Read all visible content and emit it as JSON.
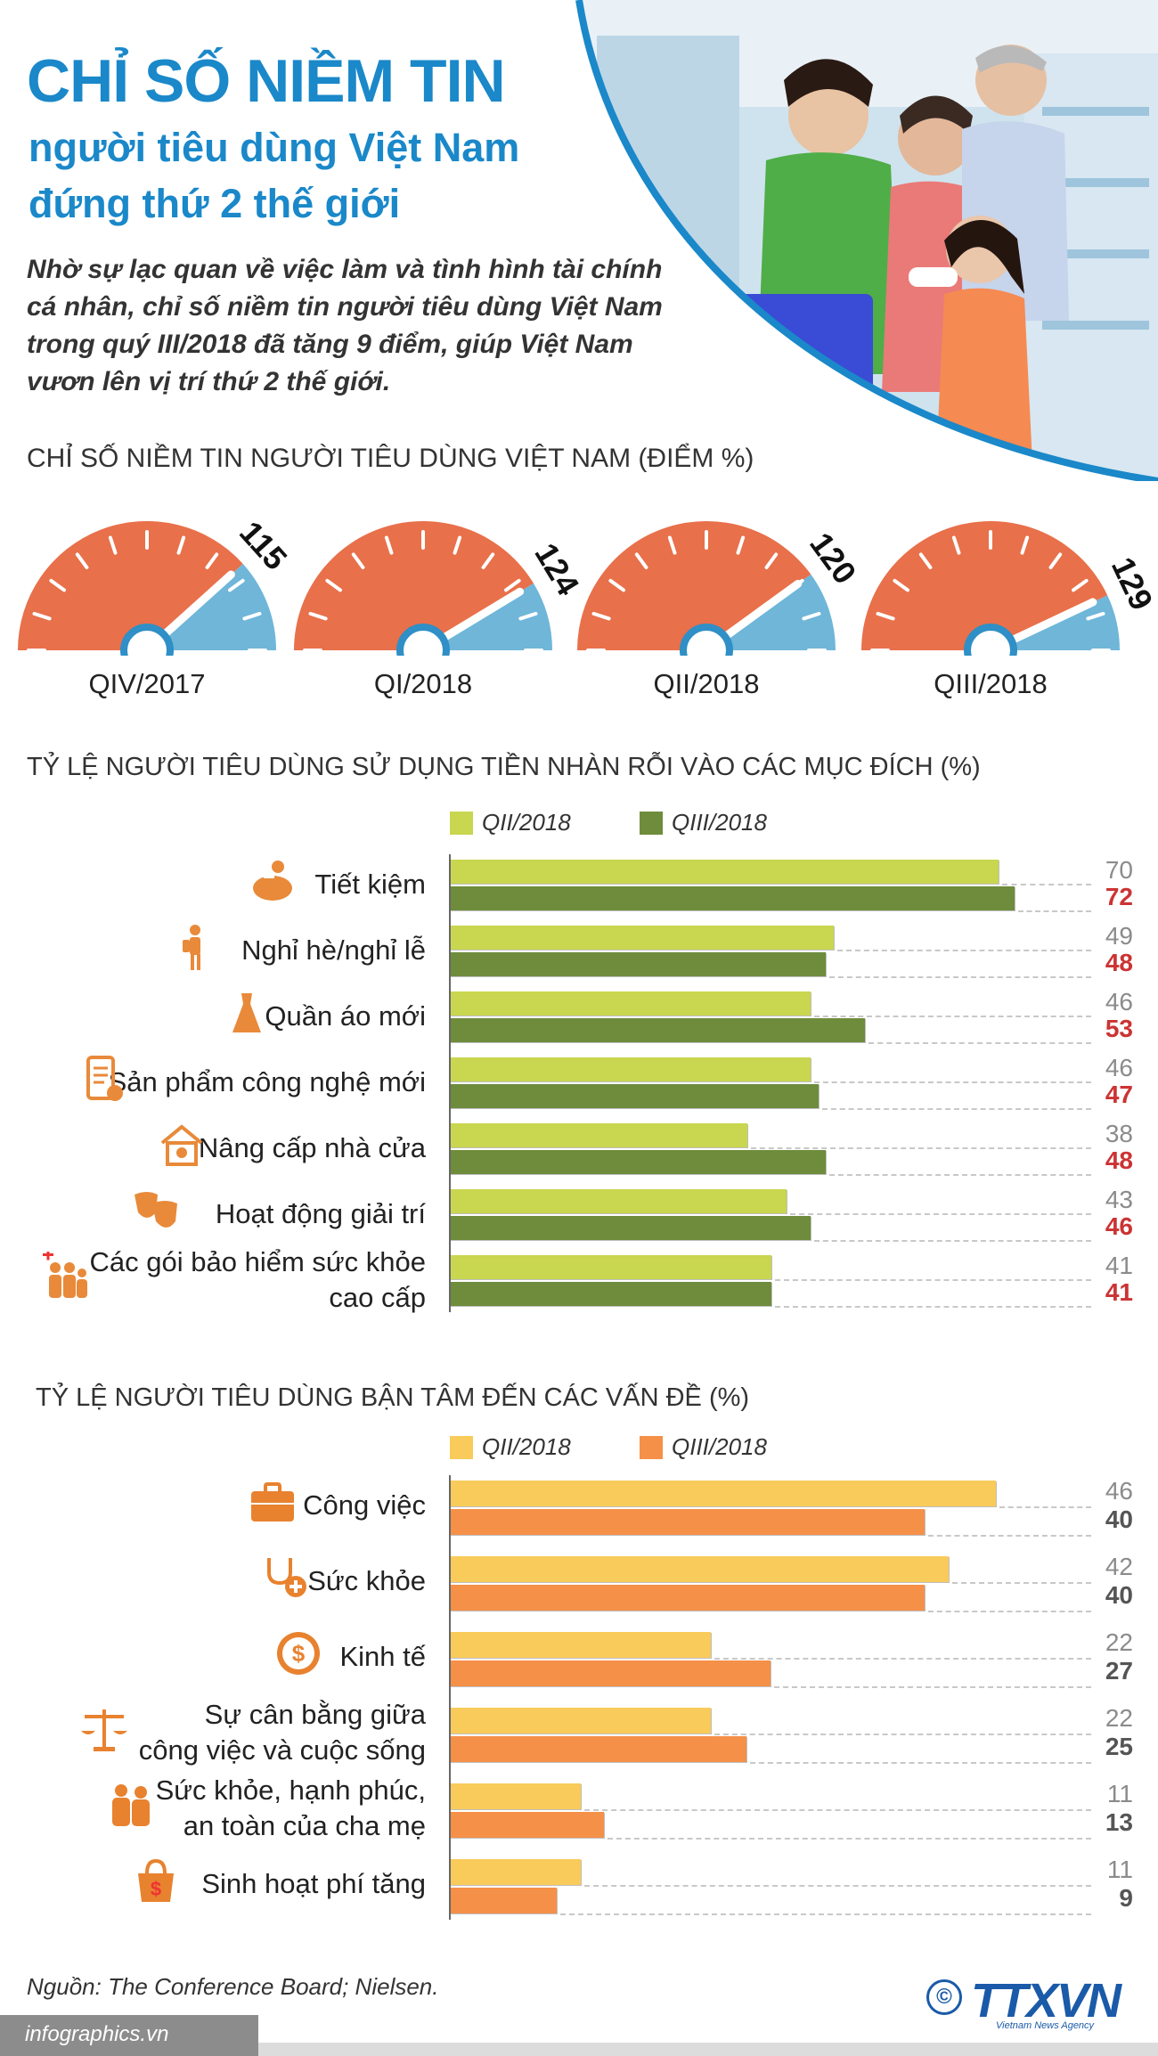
{
  "header": {
    "title_line1": "CHỈ SỐ NIỀM TIN",
    "title_line2": "người tiêu dùng Việt Nam",
    "title_line3": "đứng thứ 2 thế giới",
    "intro": "Nhờ sự lạc quan về việc làm và tình hình tài chính cá nhân, chỉ số niềm tin người tiêu dùng Việt Nam trong quý III/2018 đã tăng 9 điểm, giúp Việt Nam vươn lên vị trí thứ 2 thế giới."
  },
  "colors": {
    "brand_blue": "#1a88c9",
    "gauge_orange": "#e8704a",
    "gauge_blue": "#6fb6d9",
    "gauge_needle_ring": "#2f8fc6",
    "bar1_prev": "#c9d64f",
    "bar1_cur": "#6e8c3c",
    "bar2_prev": "#f9cb5a",
    "bar2_cur": "#f59048",
    "value_highlight": "#cc3333"
  },
  "chart_data": [
    {
      "type": "gauge",
      "title": "CHỈ SỐ NIỀM TIN NGƯỜI TIÊU DÙNG VIỆT NAM (ĐIỂM %)",
      "categories": [
        "QIV/2017",
        "QI/2018",
        "QII/2018",
        "QIII/2018"
      ],
      "values": [
        115,
        124,
        120,
        129
      ]
    },
    {
      "type": "bar",
      "orientation": "horizontal",
      "title": "TỶ LỆ NGƯỜI TIÊU DÙNG SỬ DỤNG TIỀN NHÀN RỖI VÀO CÁC MỤC ĐÍCH (%)",
      "legend_placement": "top",
      "categories": [
        {
          "label": [
            "Tiết kiệm"
          ],
          "icon": "piggy-bank-icon"
        },
        {
          "label": [
            "Nghỉ hè/nghỉ lễ"
          ],
          "icon": "hiker-icon"
        },
        {
          "label": [
            "Quần áo mới"
          ],
          "icon": "dress-icon"
        },
        {
          "label": [
            "Sản phẩm công nghệ mới"
          ],
          "icon": "phone-icon"
        },
        {
          "label": [
            "Nâng cấp nhà cửa"
          ],
          "icon": "house-gear-icon"
        },
        {
          "label": [
            "Hoạt động giải trí"
          ],
          "icon": "theater-masks-icon"
        },
        {
          "label": [
            "Các gói bảo hiểm sức khỏe",
            "cao cấp"
          ],
          "icon": "family-health-icon"
        }
      ],
      "series": [
        {
          "name": "QII/2018",
          "values": [
            70,
            49,
            46,
            46,
            38,
            43,
            41
          ]
        },
        {
          "name": "QIII/2018",
          "values": [
            72,
            48,
            53,
            47,
            48,
            46,
            41
          ]
        }
      ],
      "xlim": [
        0,
        75
      ]
    },
    {
      "type": "bar",
      "orientation": "horizontal",
      "title": "TỶ LỆ NGƯỜI TIÊU DÙNG BẬN TÂM ĐẾN CÁC VẤN ĐỀ (%)",
      "legend_placement": "top",
      "categories": [
        {
          "label": [
            "Công việc"
          ],
          "icon": "briefcase-icon"
        },
        {
          "label": [
            "Sức khỏe"
          ],
          "icon": "stethoscope-icon"
        },
        {
          "label": [
            "Kinh tế"
          ],
          "icon": "dollar-coin-icon"
        },
        {
          "label": [
            "Sự cân bằng giữa",
            "công việc và cuộc sống"
          ],
          "icon": "balance-scale-icon"
        },
        {
          "label": [
            "Sức khỏe, hạnh phúc,",
            "an toàn của cha mẹ"
          ],
          "icon": "elderly-couple-icon"
        },
        {
          "label": [
            "Sinh hoạt phí tăng"
          ],
          "icon": "shopping-bag-dollar-icon"
        }
      ],
      "series": [
        {
          "name": "QII/2018",
          "values": [
            46,
            42,
            22,
            22,
            11,
            11
          ]
        },
        {
          "name": "QIII/2018",
          "values": [
            40,
            40,
            27,
            25,
            13,
            9
          ]
        }
      ],
      "xlim": [
        0,
        48
      ]
    }
  ],
  "footer": {
    "source": "Nguồn: The Conference Board; Nielsen.",
    "site": "infographics.vn",
    "copyright_symbol": "©",
    "logo_text": "TTXVN",
    "logo_subtext": "Vietnam News Agency"
  }
}
